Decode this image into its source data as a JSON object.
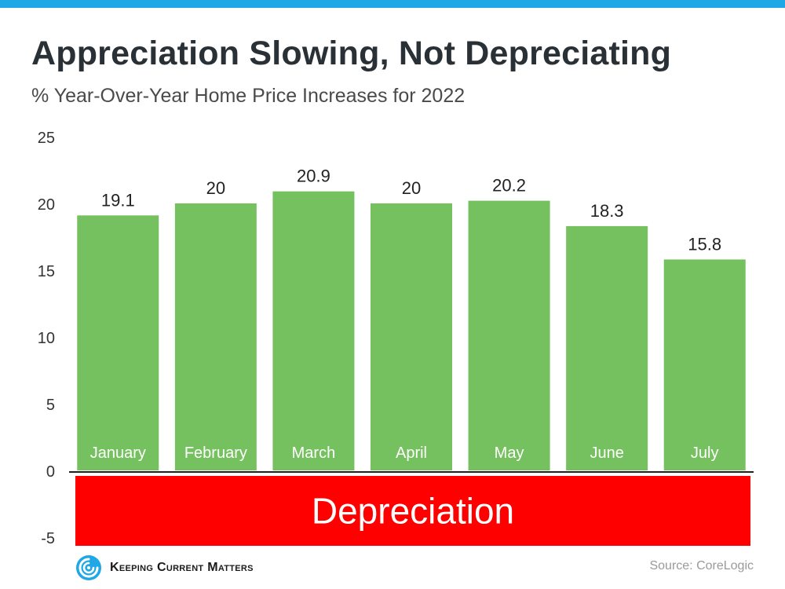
{
  "colors": {
    "accent_bar": "#1fa7e6",
    "bar": "#76c15f",
    "depreciation": "#ff0000",
    "text": "#2a3136",
    "axis_line": "#222222"
  },
  "brand": {
    "logo_icon": "swirl-logo-icon",
    "name": "Keeping Current Matters"
  },
  "source": "Source: CoreLogic",
  "chart_data": {
    "type": "bar",
    "title": "Appreciation Slowing, Not Depreciating",
    "subtitle": "% Year-Over-Year Home Price Increases for 2022",
    "categories": [
      "January",
      "February",
      "March",
      "April",
      "May",
      "June",
      "July"
    ],
    "values": [
      19.1,
      20,
      20.9,
      20,
      20.2,
      18.3,
      15.8
    ],
    "data_labels": [
      "19.1",
      "20",
      "20.9",
      "20",
      "20.2",
      "18.3",
      "15.8"
    ],
    "ylim": [
      -5,
      25
    ],
    "yticks": [
      25,
      20,
      15,
      10,
      5,
      0,
      -5
    ],
    "ytick_labels": [
      "25",
      "20",
      "15",
      "10",
      "5",
      "0",
      "-5"
    ],
    "grid": false,
    "negative_region": {
      "from": 0,
      "to": -5,
      "label": "Depreciation"
    }
  }
}
